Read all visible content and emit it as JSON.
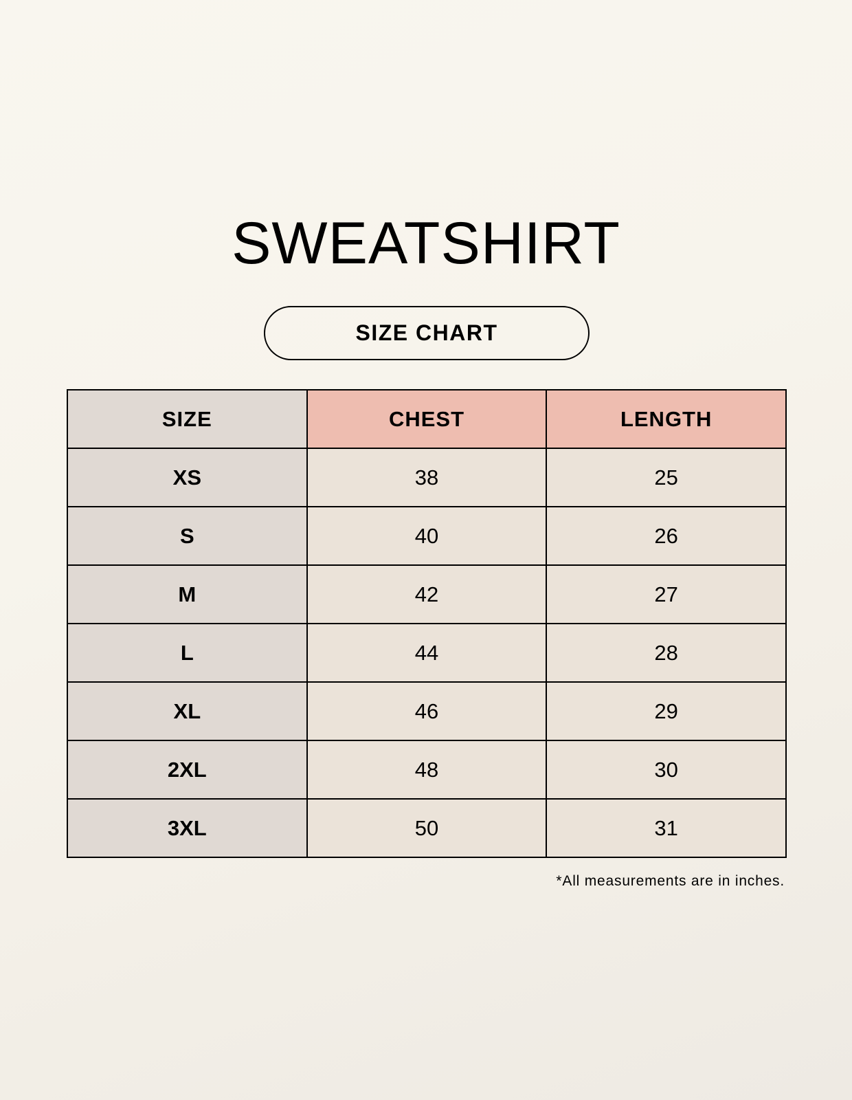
{
  "title": "SWEATSHIRT",
  "subtitle": "SIZE CHART",
  "table": {
    "headers": [
      "SIZE",
      "CHEST",
      "LENGTH"
    ],
    "rows": [
      [
        "XS",
        "38",
        "25"
      ],
      [
        "S",
        "40",
        "26"
      ],
      [
        "M",
        "42",
        "27"
      ],
      [
        "L",
        "44",
        "28"
      ],
      [
        "XL",
        "46",
        "29"
      ],
      [
        "2XL",
        "48",
        "30"
      ],
      [
        "3XL",
        "50",
        "31"
      ]
    ]
  },
  "footnote": "*All measurements are in inches.",
  "colors": {
    "size_column": "#e0d9d3",
    "header_accent": "#eebdb0",
    "value_cells": "#ebe3d9"
  }
}
